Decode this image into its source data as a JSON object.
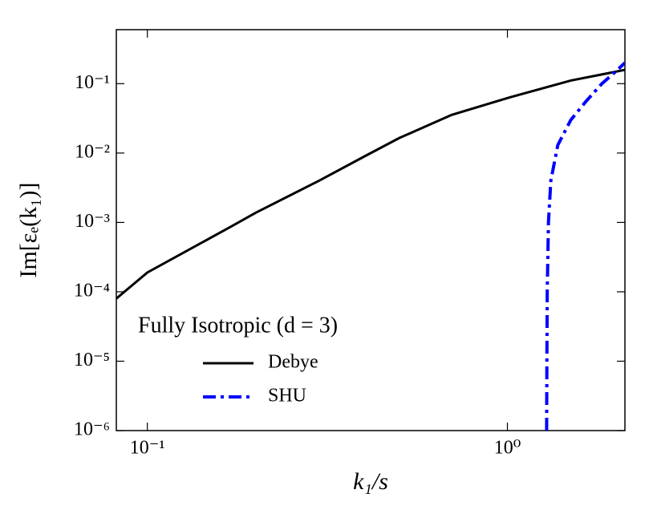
{
  "chart_data": {
    "type": "line",
    "x_label": "k₁/s",
    "y_label": "Im[εₑ(k₁)]",
    "legend_title": "Fully Isotropic (d = 3)",
    "legend_position": "lower left",
    "xscale": "log",
    "yscale": "log",
    "xlim": [
      0.082,
      2.12
    ],
    "ylim": [
      1e-06,
      0.6
    ],
    "xticks": [
      {
        "value": 0.1,
        "label": "10⁻¹"
      },
      {
        "value": 1,
        "label": "10⁰"
      }
    ],
    "yticks": [
      {
        "value": 1e-06,
        "label": "10⁻⁶"
      },
      {
        "value": 1e-05,
        "label": "10⁻⁵"
      },
      {
        "value": 0.0001,
        "label": "10⁻⁴"
      },
      {
        "value": 0.001,
        "label": "10⁻³"
      },
      {
        "value": 0.01,
        "label": "10⁻²"
      },
      {
        "value": 0.1,
        "label": "10⁻¹"
      }
    ],
    "series": [
      {
        "name": "Debye",
        "color": "#000000",
        "dash": "solid",
        "x": [
          0.082,
          0.1,
          0.17,
          0.2,
          0.3,
          0.4,
          0.5,
          0.7,
          1.0,
          1.5,
          2.12
        ],
        "values": [
          8e-05,
          0.00019,
          0.00086,
          0.00138,
          0.004,
          0.0089,
          0.0164,
          0.0355,
          0.062,
          0.111,
          0.158
        ]
      },
      {
        "name": "SHU",
        "color": "#0000ff",
        "dash": "dashdot",
        "x": [
          1.285,
          1.287,
          1.29,
          1.3,
          1.32,
          1.38,
          1.5,
          1.65,
          1.83,
          2.0,
          2.12
        ],
        "values": [
          1e-06,
          1e-05,
          0.0001,
          0.001,
          0.004,
          0.013,
          0.03,
          0.055,
          0.1,
          0.15,
          0.2
        ]
      }
    ]
  }
}
